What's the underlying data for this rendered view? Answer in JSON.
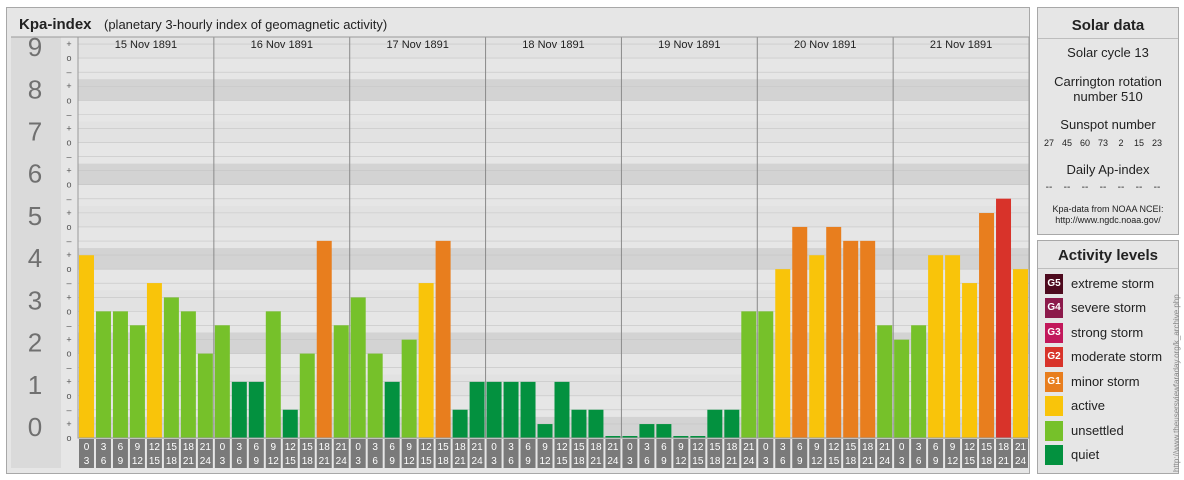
{
  "header": {
    "title": "Kpa-index",
    "subtitle": "(planetary 3-hourly index of geomagnetic activity)"
  },
  "chart_data": {
    "type": "bar",
    "title": "Kpa-index",
    "subtitle": "(planetary 3-hourly index of geomagnetic activity)",
    "ylim": [
      0,
      9
    ],
    "y_ticks": [
      "0",
      "1",
      "2",
      "3",
      "4",
      "5",
      "6",
      "7",
      "8",
      "9"
    ],
    "sub_ticks": [
      "+",
      "o",
      "–"
    ],
    "days": [
      "15 Nov 1891",
      "16 Nov 1891",
      "17 Nov 1891",
      "18 Nov 1891",
      "19 Nov 1891",
      "20 Nov 1891",
      "21 Nov 1891"
    ],
    "interval_start_labels": [
      "0",
      "3",
      "6",
      "9",
      "12",
      "15",
      "18",
      "21"
    ],
    "interval_end_labels": [
      "3",
      "6",
      "9",
      "12",
      "15",
      "18",
      "21",
      "24"
    ],
    "values": [
      [
        4.33,
        3.0,
        3.0,
        2.67,
        3.67,
        3.33,
        3.0,
        2.0
      ],
      [
        2.67,
        1.33,
        1.33,
        3.0,
        0.67,
        2.0,
        4.67,
        2.67
      ],
      [
        3.33,
        2.0,
        1.33,
        2.33,
        3.67,
        4.67,
        0.67,
        1.33
      ],
      [
        1.33,
        1.33,
        1.33,
        0.33,
        1.33,
        0.67,
        0.67,
        0.0
      ],
      [
        0.0,
        0.33,
        0.33,
        0.0,
        0.0,
        0.67,
        0.67,
        3.0
      ],
      [
        3.0,
        4.0,
        5.0,
        4.33,
        5.0,
        4.67,
        4.67,
        2.67
      ],
      [
        2.33,
        2.67,
        4.33,
        4.33,
        3.67,
        5.33,
        5.67,
        4.0
      ]
    ],
    "level_colors": {
      "quiet": "#03913f",
      "unsettled": "#76c12a",
      "active": "#f9c40a",
      "minor_storm": "#e87e1e",
      "moderate_storm": "#d8332a"
    },
    "grid": true,
    "legend": "right"
  },
  "solar_data": {
    "title": "Solar data",
    "solar_cycle": "Solar cycle 13",
    "carrington_line1": "Carrington rotation",
    "carrington_line2": "number 510",
    "sunspot_title": "Sunspot number",
    "sunspot_numbers": [
      "27",
      "45",
      "60",
      "73",
      "2",
      "15",
      "23"
    ],
    "ap_title": "Daily Ap-index",
    "ap_values": [
      "--",
      "--",
      "--",
      "--",
      "--",
      "--",
      "--"
    ],
    "source_line1": "Kpa-data from NOAA NCEI:",
    "source_line2": "http://www.ngdc.noaa.gov/"
  },
  "activity_levels": {
    "title": "Activity levels",
    "items": [
      {
        "code": "G5",
        "label": "extreme storm",
        "color": "#4d0a1e"
      },
      {
        "code": "G4",
        "label": "severe storm",
        "color": "#8c1a4b"
      },
      {
        "code": "G3",
        "label": "strong storm",
        "color": "#c2185b"
      },
      {
        "code": "G2",
        "label": "moderate storm",
        "color": "#d8332a"
      },
      {
        "code": "G1",
        "label": "minor storm",
        "color": "#e87e1e"
      },
      {
        "code": "",
        "label": "active",
        "color": "#f9c40a"
      },
      {
        "code": "",
        "label": "unsettled",
        "color": "#76c12a"
      },
      {
        "code": "",
        "label": "quiet",
        "color": "#03913f"
      }
    ]
  },
  "footer": {
    "side_text": "http://www.theusersviewfaraday.org/k_archive.php"
  }
}
